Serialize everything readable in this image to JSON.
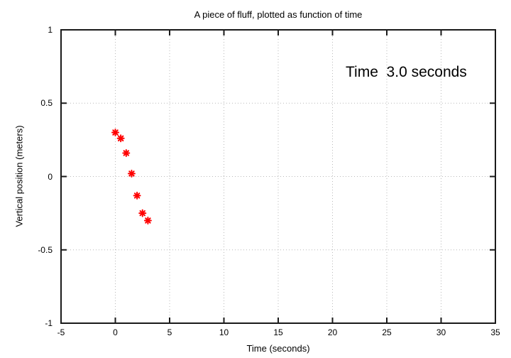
{
  "chart_data": {
    "type": "scatter",
    "title": "A piece of fluff, plotted as function of time",
    "xlabel": "Time (seconds)",
    "ylabel": "Vertical position (meters)",
    "annotation": "Time  3.0 seconds",
    "xlim": [
      -5,
      35
    ],
    "ylim": [
      -1,
      1
    ],
    "xticks": [
      -5,
      0,
      5,
      10,
      15,
      20,
      25,
      30,
      35
    ],
    "xtick_labels": [
      "-5",
      "0",
      "5",
      "10",
      "15",
      "20",
      "25",
      "30",
      "35"
    ],
    "yticks": [
      -1,
      -0.5,
      0,
      0.5,
      1
    ],
    "ytick_labels": [
      "-1",
      "-0.5",
      "0",
      "0.5",
      "1"
    ],
    "grid": true,
    "legend": "none",
    "marker": "asterisk",
    "series": [
      {
        "color": "#ff0000",
        "points": [
          {
            "x": 0.0,
            "y": 0.3
          },
          {
            "x": 0.5,
            "y": 0.26
          },
          {
            "x": 1.0,
            "y": 0.16
          },
          {
            "x": 1.5,
            "y": 0.02
          },
          {
            "x": 2.0,
            "y": -0.13
          },
          {
            "x": 2.5,
            "y": -0.25
          },
          {
            "x": 3.0,
            "y": -0.3
          }
        ]
      }
    ],
    "colors": {
      "marker": "#ff0000",
      "grid": "#b8b8b8",
      "border": "#1a1a1a",
      "background": "#ffffff",
      "text": "#000000"
    }
  }
}
